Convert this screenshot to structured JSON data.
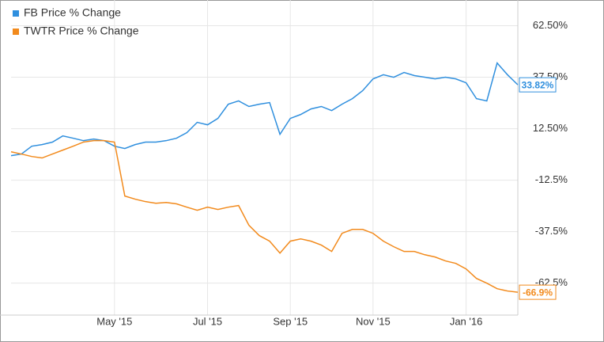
{
  "chart_data": {
    "type": "line",
    "categories": [
      null,
      null,
      null,
      null,
      null,
      null,
      null,
      null,
      null,
      null,
      "May '15",
      null,
      null,
      null,
      null,
      null,
      null,
      null,
      null,
      "Jul '15",
      null,
      null,
      null,
      null,
      null,
      null,
      null,
      "Sep '15",
      null,
      null,
      null,
      null,
      null,
      null,
      null,
      "Nov '15",
      null,
      null,
      null,
      null,
      null,
      null,
      null,
      null,
      "Jan '16",
      null,
      null,
      null,
      null,
      null
    ],
    "series": [
      {
        "name": "FB Price % Change",
        "color": "#2f8fde",
        "values": [
          -0.6,
          0.2,
          4,
          4.8,
          6,
          9,
          7.9,
          6.7,
          7.5,
          6.7,
          4,
          2.9,
          4.8,
          6,
          6,
          6.7,
          7.9,
          10.6,
          15.6,
          14.4,
          17.5,
          24.4,
          26,
          23.3,
          24.4,
          25.2,
          9.8,
          17.5,
          19.4,
          22.1,
          23.3,
          21.3,
          24.4,
          27.1,
          31,
          36.7,
          38.7,
          37.5,
          39.8,
          38.3,
          37.5,
          36.7,
          37.5,
          36.7,
          34.8,
          27.1,
          26,
          44.4,
          38.7,
          33.82
        ],
        "value_labels": [
          null,
          null,
          null,
          null,
          null,
          null,
          null,
          null,
          null,
          null,
          null,
          null,
          null,
          null,
          null,
          null,
          null,
          null,
          null,
          null,
          null,
          null,
          null,
          null,
          null,
          null,
          null,
          null,
          null,
          null,
          null,
          null,
          null,
          null,
          null,
          null,
          null,
          null,
          null,
          null,
          null,
          null,
          null,
          null,
          null,
          null,
          null,
          null,
          null,
          "33.82%"
        ]
      },
      {
        "name": "TWTR Price % Change",
        "color": "#f28a1c",
        "values": [
          1.3,
          0.2,
          -1,
          -1.7,
          0.2,
          2.1,
          4,
          6,
          6.7,
          6.7,
          6,
          -20.2,
          -21.7,
          -22.9,
          -23.7,
          -23.3,
          -24,
          -25.6,
          -27.1,
          -25.6,
          -26.7,
          -25.6,
          -24.8,
          -34.4,
          -39.4,
          -42.1,
          -47.9,
          -42.1,
          -41,
          -42.1,
          -44,
          -47.1,
          -38.3,
          -36.4,
          -36.4,
          -38.3,
          -42.1,
          -44.8,
          -47.1,
          -47.1,
          -48.7,
          -49.8,
          -51.7,
          -52.9,
          -55.6,
          -60.2,
          -62.5,
          -65.2,
          -66.3,
          -66.9
        ],
        "value_labels": [
          null,
          null,
          null,
          null,
          null,
          null,
          null,
          null,
          null,
          null,
          null,
          null,
          null,
          null,
          null,
          null,
          null,
          null,
          null,
          null,
          null,
          null,
          null,
          null,
          null,
          null,
          null,
          null,
          null,
          null,
          null,
          null,
          null,
          null,
          null,
          null,
          null,
          null,
          null,
          null,
          null,
          null,
          null,
          null,
          null,
          null,
          null,
          null,
          null,
          "-66.9%"
        ]
      }
    ],
    "ylim": [
      -78,
      75
    ],
    "yticks": [
      {
        "value": -62.5,
        "label": "-62.5%"
      },
      {
        "value": -37.5,
        "label": "-37.5%"
      },
      {
        "value": -12.5,
        "label": "-12.5%"
      },
      {
        "value": 12.5,
        "label": "12.50%"
      },
      {
        "value": 37.5,
        "label": "37.50%"
      },
      {
        "value": 62.5,
        "label": "62.50%"
      }
    ],
    "grid": true,
    "legend": "top-left"
  }
}
